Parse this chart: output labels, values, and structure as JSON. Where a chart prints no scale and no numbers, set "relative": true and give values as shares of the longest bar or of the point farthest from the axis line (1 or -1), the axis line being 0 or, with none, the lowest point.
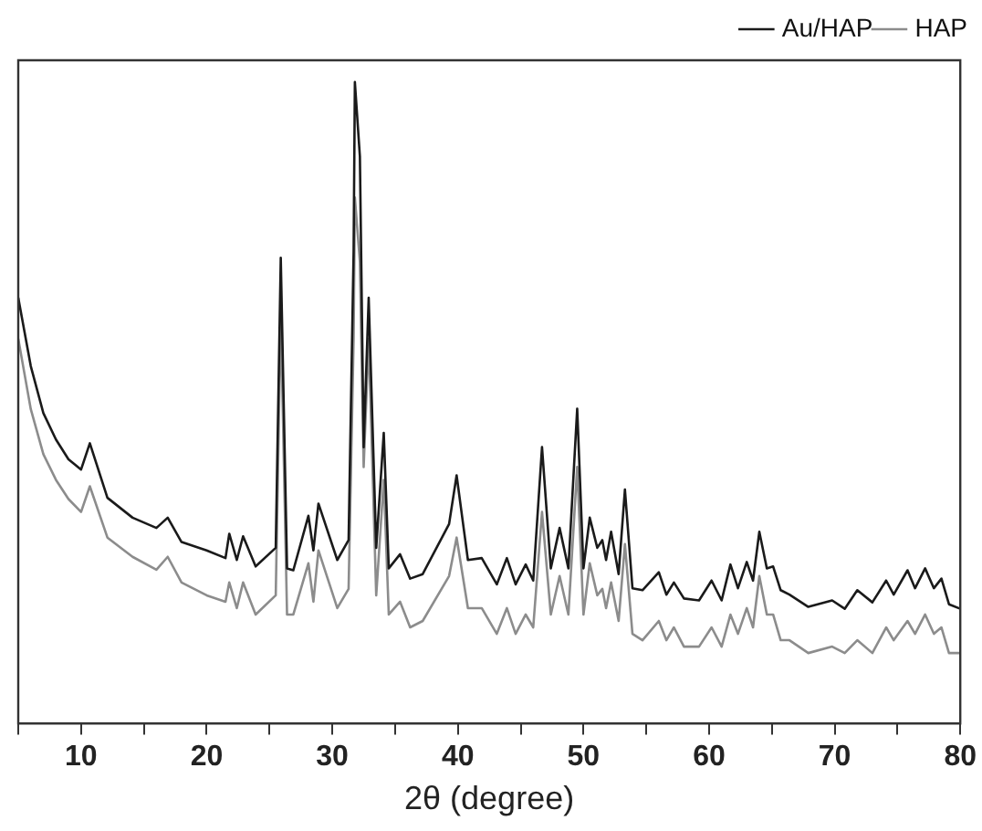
{
  "chart_data": {
    "type": "line",
    "xlabel": "2θ (degree)",
    "relative": true,
    "grid": false,
    "legend": "top right",
    "marker": "none",
    "line_style": "solid",
    "xlim": [
      5,
      80
    ],
    "xticks": [
      {
        "value": 5,
        "label": null
      },
      10,
      {
        "value": 15,
        "label": null
      },
      20,
      {
        "value": 25,
        "label": null
      },
      30,
      {
        "value": 35,
        "label": null
      },
      40,
      {
        "value": 45,
        "label": null
      },
      50,
      {
        "value": 55,
        "label": null
      },
      60,
      {
        "value": 65,
        "label": null
      },
      70,
      {
        "value": 75,
        "label": null
      },
      80
    ],
    "x": [
      5,
      6,
      7,
      8,
      9,
      10,
      10.7,
      12.1,
      14.1,
      16,
      16.9,
      18,
      20,
      21.5,
      21.8,
      22.4,
      22.9,
      23.9,
      25.5,
      25.9,
      26.4,
      26.9,
      28.1,
      28.5,
      28.9,
      30.4,
      31.3,
      31.7,
      31.8,
      32.2,
      32.5,
      32.9,
      33.5,
      34.1,
      34.5,
      35.4,
      36.2,
      37.2,
      39.3,
      39.9,
      40.8,
      41.9,
      43.1,
      43.9,
      44.6,
      45.4,
      46,
      46.7,
      47.4,
      48.1,
      48.8,
      49.5,
      50,
      50.5,
      51.1,
      51.5,
      51.8,
      52.2,
      52.8,
      53.3,
      53.9,
      54.7,
      56,
      56.6,
      57.2,
      58,
      59.2,
      60.2,
      61,
      61.7,
      62.3,
      63,
      63.5,
      64,
      64.6,
      65.1,
      65.7,
      66.4,
      67.9,
      69.8,
      70.8,
      71.8,
      73,
      74.1,
      74.7,
      75.8,
      76.4,
      77.2,
      77.9,
      78.5,
      79.1,
      80
    ],
    "series": [
      {
        "name": "Au/HAP",
        "color": "#1a1a1a",
        "values": [
          0.664,
          0.557,
          0.484,
          0.443,
          0.412,
          0.396,
          0.437,
          0.352,
          0.321,
          0.305,
          0.321,
          0.283,
          0.27,
          0.258,
          0.296,
          0.255,
          0.292,
          0.245,
          0.274,
          0.726,
          0.242,
          0.239,
          0.324,
          0.27,
          0.343,
          0.255,
          0.286,
          0.736,
          1,
          0.884,
          0.431,
          0.664,
          0.274,
          0.453,
          0.242,
          0.264,
          0.226,
          0.233,
          0.311,
          0.387,
          0.255,
          0.258,
          0.217,
          0.258,
          0.217,
          0.248,
          0.223,
          0.431,
          0.242,
          0.305,
          0.242,
          0.491,
          0.242,
          0.321,
          0.274,
          0.286,
          0.255,
          0.299,
          0.233,
          0.365,
          0.211,
          0.208,
          0.236,
          0.201,
          0.22,
          0.195,
          0.192,
          0.223,
          0.192,
          0.248,
          0.211,
          0.252,
          0.223,
          0.299,
          0.242,
          0.245,
          0.208,
          0.201,
          0.182,
          0.192,
          0.179,
          0.208,
          0.189,
          0.223,
          0.201,
          0.239,
          0.211,
          0.242,
          0.211,
          0.226,
          0.186,
          0.179
        ]
      },
      {
        "name": "HAP",
        "color": "#8c8c8c",
        "values": [
          0.6,
          0.49,
          0.42,
          0.38,
          0.35,
          0.33,
          0.37,
          0.29,
          0.26,
          0.24,
          0.26,
          0.22,
          0.2,
          0.19,
          0.22,
          0.18,
          0.22,
          0.17,
          0.2,
          0.64,
          0.17,
          0.17,
          0.25,
          0.19,
          0.27,
          0.18,
          0.21,
          0.6,
          0.82,
          0.72,
          0.4,
          0.6,
          0.2,
          0.38,
          0.17,
          0.19,
          0.15,
          0.16,
          0.23,
          0.29,
          0.18,
          0.18,
          0.14,
          0.18,
          0.14,
          0.17,
          0.15,
          0.33,
          0.17,
          0.23,
          0.17,
          0.4,
          0.17,
          0.25,
          0.2,
          0.21,
          0.18,
          0.22,
          0.16,
          0.28,
          0.14,
          0.13,
          0.16,
          0.13,
          0.15,
          0.12,
          0.12,
          0.15,
          0.12,
          0.17,
          0.14,
          0.18,
          0.15,
          0.23,
          0.17,
          0.17,
          0.13,
          0.13,
          0.11,
          0.12,
          0.11,
          0.13,
          0.11,
          0.15,
          0.13,
          0.16,
          0.14,
          0.17,
          0.14,
          0.15,
          0.11,
          0.11
        ]
      }
    ]
  }
}
